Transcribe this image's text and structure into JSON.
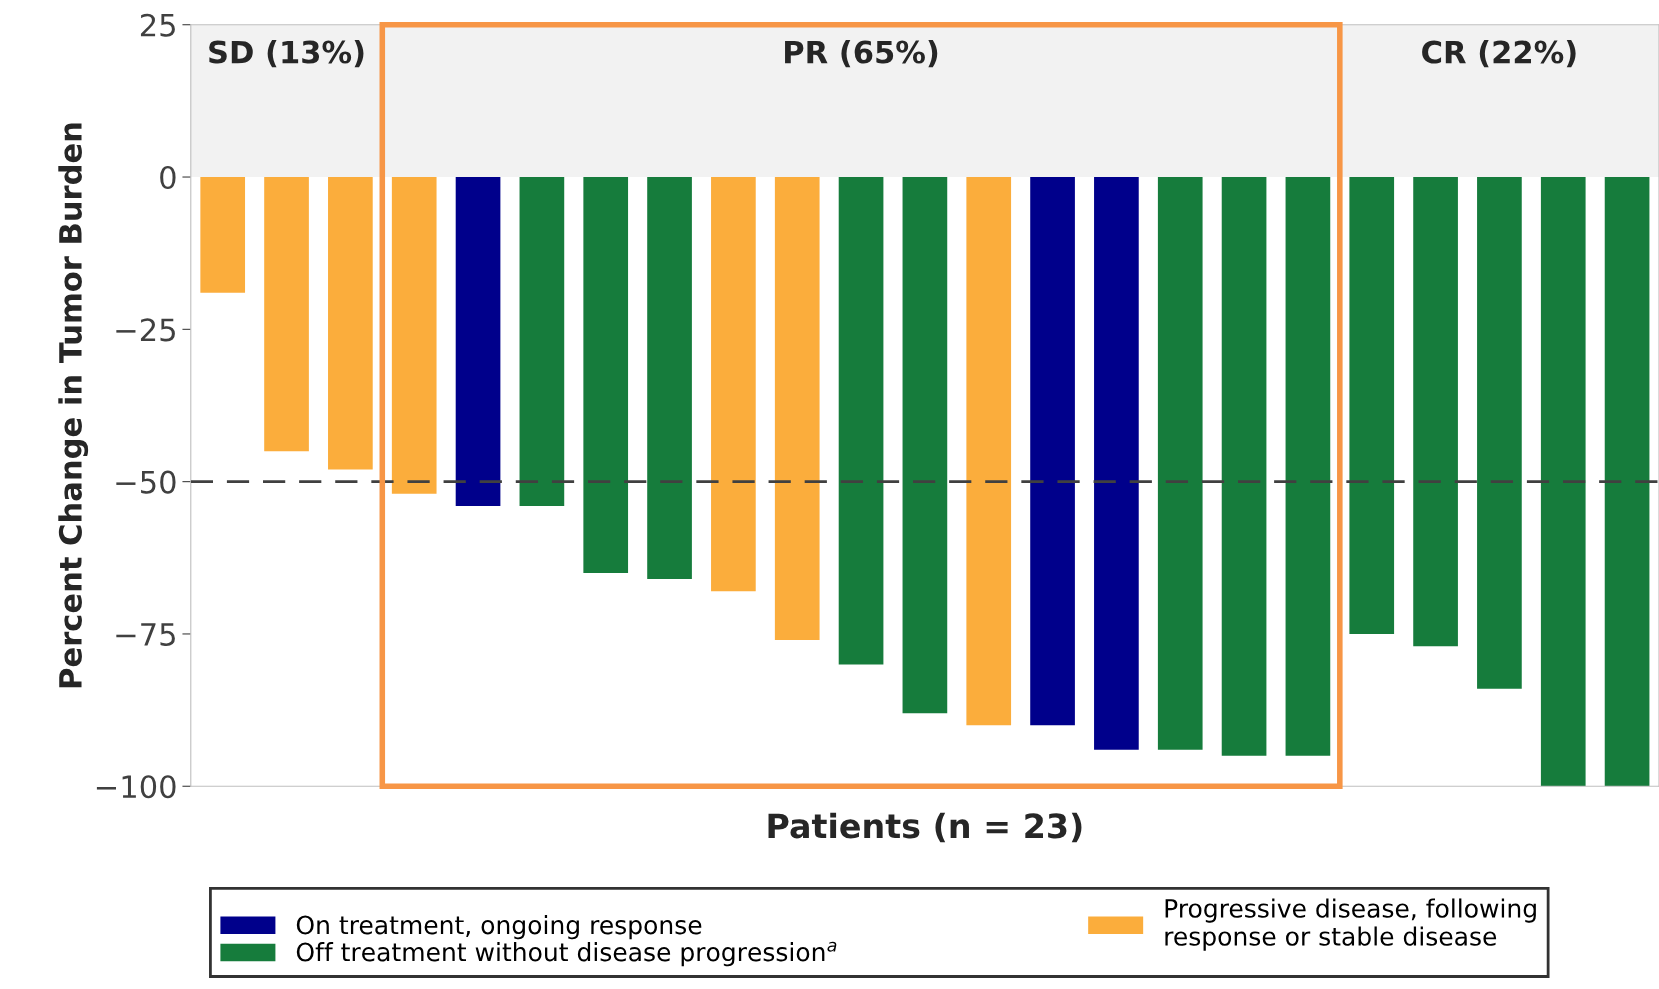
{
  "chart_data": {
    "type": "bar",
    "xlabel": "Patients (n = 23)",
    "ylabel": "Percent Change in Tumor Burden",
    "categories": [
      null,
      null,
      null,
      null,
      null,
      null,
      null,
      null,
      null,
      null,
      null,
      null,
      null,
      null,
      null,
      null,
      null,
      null,
      null,
      null,
      null,
      null,
      null
    ],
    "stacked": true,
    "series": [
      {
        "name": "On treatment, ongoing response",
        "color": "#00008b",
        "values": [
          0,
          0,
          0,
          0,
          -54,
          0,
          0,
          0,
          0,
          0,
          0,
          0,
          0,
          -90,
          -94,
          0,
          0,
          0,
          0,
          0,
          0,
          0,
          0
        ]
      },
      {
        "name": "Off treatment without disease progression$^{a}$",
        "color": "#167c3c",
        "values": [
          0,
          0,
          0,
          0,
          0,
          -54,
          -65,
          -66,
          0,
          0,
          -80,
          -88,
          0,
          0,
          0,
          -94,
          -95,
          -95,
          -75,
          -77,
          -84,
          -100,
          -100
        ]
      },
      {
        "name": "Progressive disease, following\nresponse or stable disease",
        "color": "#fbad3c",
        "values": [
          -19,
          -45,
          -48,
          -52,
          0,
          0,
          0,
          0,
          -68,
          -76,
          0,
          0,
          -90,
          0,
          0,
          0,
          0,
          0,
          0,
          0,
          0,
          0,
          0
        ]
      }
    ],
    "ylim": [
      -100,
      25
    ],
    "yticks": [
      -100,
      -75,
      -50,
      -25,
      0,
      25
    ],
    "ref_lines": [
      {
        "axis": "y",
        "value": -50,
        "color": "#404040",
        "line_style": "dashed"
      }
    ],
    "bands": [
      {
        "axis": "y",
        "from": 0,
        "to": 25,
        "color": "#f2f2f2"
      }
    ],
    "annotations": [
      "SD (13%)",
      "PR (65%)",
      "CR (22%)"
    ],
    "legend": "bottom"
  }
}
